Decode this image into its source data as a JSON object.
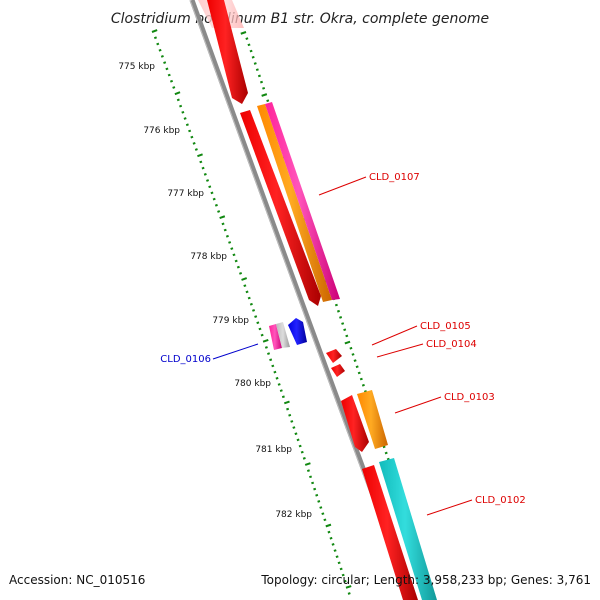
{
  "title": "Clostridium botulinum B1 str. Okra, complete genome",
  "footer": {
    "accession": "Accession: NC_010516",
    "summary": "Topology: circular; Length: 3,958,233 bp; Genes: 3,761"
  },
  "scale": {
    "ticks": [
      "775 kbp",
      "776 kbp",
      "777 kbp",
      "778 kbp",
      "779 kbp",
      "780 kbp",
      "781 kbp",
      "782 kbp"
    ]
  },
  "gene_labels": [
    {
      "id": "CLD_0107",
      "color": "#dd0000"
    },
    {
      "id": "CLD_0105",
      "color": "#dd0000"
    },
    {
      "id": "CLD_0104",
      "color": "#dd0000"
    },
    {
      "id": "CLD_0103",
      "color": "#dd0000"
    },
    {
      "id": "CLD_0102",
      "color": "#dd0000"
    },
    {
      "id": "CLD_0106",
      "color": "#0000cc"
    }
  ],
  "colors": {
    "backbone": "#888888",
    "tick_marks": "#118811",
    "gene_red": "#ff0000",
    "gene_orange": "#ff9900",
    "gene_magenta": "#ff33aa",
    "gene_cyan": "#22cccc",
    "gene_blue": "#0000ff"
  }
}
